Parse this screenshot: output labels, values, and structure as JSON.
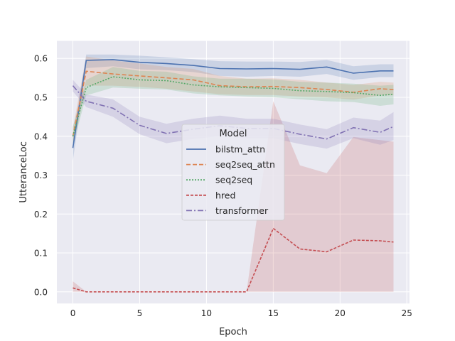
{
  "chart_data": {
    "type": "line",
    "title": "",
    "xlabel": "Epoch",
    "ylabel": "UtteranceLoc",
    "xlim": [
      -1.2,
      25.2
    ],
    "ylim": [
      -0.03,
      0.645
    ],
    "xticks": [
      0,
      5,
      10,
      15,
      20,
      25
    ],
    "yticks": [
      0.0,
      0.1,
      0.2,
      0.3,
      0.4,
      0.5,
      0.6
    ],
    "grid": true,
    "legend": {
      "title": "Model",
      "placement": "center"
    },
    "series": [
      {
        "name": "bilstm_attn",
        "color": "#4c72b0",
        "dash": "",
        "x": [
          0,
          1,
          3,
          5,
          7,
          9,
          11,
          13,
          15,
          17,
          19,
          21,
          23,
          24
        ],
        "y": [
          0.37,
          0.595,
          0.597,
          0.59,
          0.587,
          0.582,
          0.574,
          0.573,
          0.574,
          0.572,
          0.578,
          0.562,
          0.568,
          0.568
        ],
        "lower": [
          0.337,
          0.575,
          0.58,
          0.572,
          0.57,
          0.565,
          0.555,
          0.553,
          0.555,
          0.553,
          0.56,
          0.545,
          0.552,
          0.552
        ],
        "upper": [
          0.397,
          0.61,
          0.61,
          0.607,
          0.603,
          0.598,
          0.593,
          0.592,
          0.592,
          0.591,
          0.596,
          0.58,
          0.585,
          0.585
        ]
      },
      {
        "name": "seq2seq_attn",
        "color": "#dd8452",
        "dash": "6,3",
        "x": [
          0,
          1,
          3,
          5,
          7,
          9,
          11,
          13,
          15,
          17,
          19,
          21,
          23,
          24
        ],
        "y": [
          0.4,
          0.567,
          0.56,
          0.555,
          0.55,
          0.545,
          0.53,
          0.527,
          0.528,
          0.525,
          0.52,
          0.513,
          0.522,
          0.52
        ],
        "lower": [
          0.38,
          0.53,
          0.53,
          0.527,
          0.522,
          0.515,
          0.508,
          0.506,
          0.506,
          0.502,
          0.5,
          0.494,
          0.505,
          0.505
        ],
        "upper": [
          0.42,
          0.605,
          0.595,
          0.587,
          0.578,
          0.573,
          0.555,
          0.548,
          0.549,
          0.545,
          0.538,
          0.532,
          0.54,
          0.538
        ]
      },
      {
        "name": "seq2seq",
        "color": "#55a868",
        "dash": "2,2",
        "x": [
          0,
          1,
          3,
          5,
          7,
          9,
          11,
          13,
          15,
          17,
          19,
          21,
          23,
          24
        ],
        "y": [
          0.4,
          0.525,
          0.553,
          0.545,
          0.543,
          0.532,
          0.527,
          0.525,
          0.523,
          0.517,
          0.515,
          0.512,
          0.505,
          0.508
        ],
        "lower": [
          0.375,
          0.505,
          0.525,
          0.522,
          0.52,
          0.51,
          0.505,
          0.502,
          0.5,
          0.495,
          0.49,
          0.488,
          0.478,
          0.482
        ],
        "upper": [
          0.425,
          0.545,
          0.578,
          0.568,
          0.566,
          0.554,
          0.548,
          0.548,
          0.546,
          0.54,
          0.538,
          0.535,
          0.53,
          0.532
        ]
      },
      {
        "name": "hred",
        "color": "#c44e52",
        "dash": "4,2",
        "x": [
          0,
          1,
          3,
          5,
          7,
          9,
          11,
          13,
          15,
          17,
          19,
          21,
          23,
          24
        ],
        "y": [
          0.01,
          0.0,
          0.0,
          0.0,
          0.0,
          0.0,
          0.0,
          0.0,
          0.163,
          0.11,
          0.103,
          0.133,
          0.131,
          0.128
        ],
        "lower": [
          0.0,
          0.0,
          0.0,
          0.0,
          0.0,
          0.0,
          0.0,
          0.0,
          0.0,
          0.0,
          0.0,
          0.0,
          0.0,
          0.0
        ],
        "upper": [
          0.027,
          0.0,
          0.0,
          0.0,
          0.0,
          0.0,
          0.0,
          0.0,
          0.49,
          0.325,
          0.305,
          0.398,
          0.39,
          0.386
        ]
      },
      {
        "name": "transformer",
        "color": "#8172b3",
        "dash": "8,3,2,3",
        "x": [
          0,
          1,
          3,
          5,
          7,
          9,
          11,
          13,
          15,
          17,
          19,
          21,
          23,
          24
        ],
        "y": [
          0.53,
          0.49,
          0.472,
          0.428,
          0.407,
          0.418,
          0.427,
          0.42,
          0.42,
          0.405,
          0.393,
          0.422,
          0.41,
          0.425
        ],
        "lower": [
          0.515,
          0.475,
          0.45,
          0.405,
          0.382,
          0.393,
          0.4,
          0.395,
          0.395,
          0.38,
          0.368,
          0.395,
          0.378,
          0.39
        ],
        "upper": [
          0.545,
          0.507,
          0.495,
          0.45,
          0.432,
          0.445,
          0.453,
          0.445,
          0.445,
          0.43,
          0.418,
          0.448,
          0.44,
          0.462
        ]
      }
    ]
  }
}
